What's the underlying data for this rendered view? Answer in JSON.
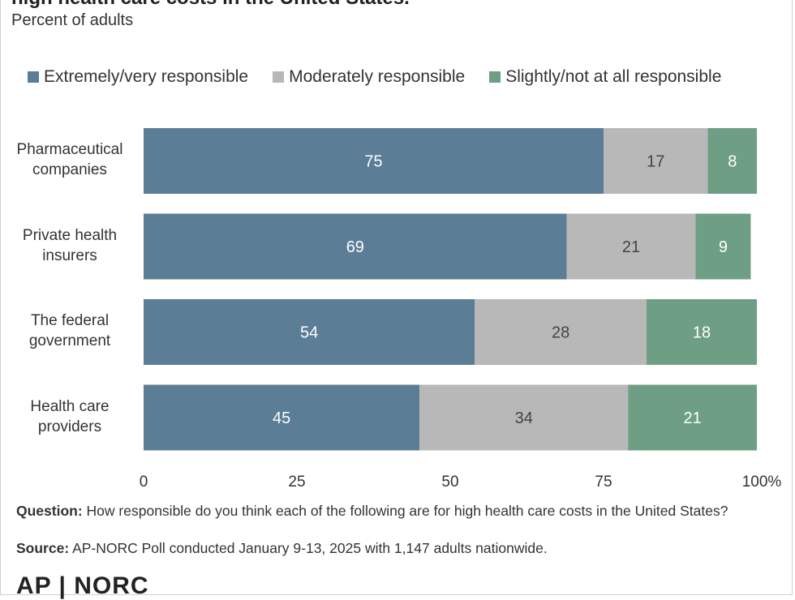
{
  "title": "high health care costs in the United States.",
  "subtitle": "Percent of adults",
  "colors": {
    "extreme": "#5b7d95",
    "moderate": "#b8b8b8",
    "slight": "#6e9e84"
  },
  "legend": [
    {
      "label": "Extremely/very responsible",
      "color": "#5b7d95"
    },
    {
      "label": "Moderately responsible",
      "color": "#b8b8b8"
    },
    {
      "label": "Slightly/not at all responsible",
      "color": "#6e9e84"
    }
  ],
  "categories_display": [
    [
      "Pharmaceutical",
      "companies"
    ],
    [
      "Private health",
      "insurers"
    ],
    [
      "The federal",
      "government"
    ],
    [
      "Health care",
      "providers"
    ]
  ],
  "chart_data": {
    "type": "bar",
    "orientation": "horizontal",
    "stacked": true,
    "title": "high health care costs in the United States.",
    "subtitle": "Percent of adults",
    "categories": [
      "Pharmaceutical companies",
      "Private health insurers",
      "The federal government",
      "Health care providers"
    ],
    "series": [
      {
        "name": "Extremely/very responsible",
        "values": [
          75,
          69,
          54,
          45
        ]
      },
      {
        "name": "Moderately responsible",
        "values": [
          17,
          21,
          28,
          34
        ]
      },
      {
        "name": "Slightly/not at all responsible",
        "values": [
          8,
          9,
          18,
          21
        ]
      }
    ],
    "xlim": [
      0,
      100
    ],
    "xticks": [
      "0",
      "25",
      "50",
      "75",
      "100%"
    ],
    "xtick_values": [
      0,
      25,
      50,
      75,
      100
    ],
    "grid": false,
    "legend_position": "top"
  },
  "footer": {
    "question_label": "Question:",
    "question_text": "How responsible do you think each of the following are for high health care costs in the United States?",
    "source_label": "Source:",
    "source_text": "AP-NORC Poll conducted January 9-13, 2025 with 1,147 adults nationwide."
  },
  "logo": {
    "text": "AP | NORC"
  }
}
